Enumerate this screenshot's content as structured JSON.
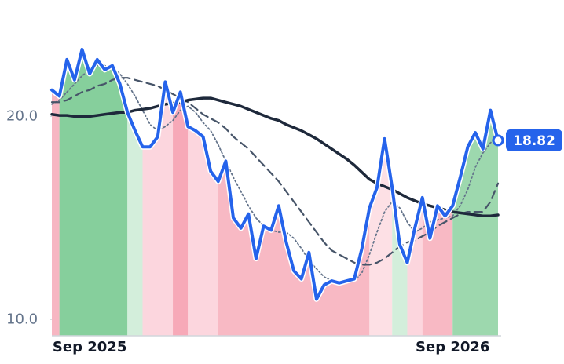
{
  "chart_data": {
    "type": "line",
    "categories": [
      null,
      null,
      null,
      null,
      null,
      "Sep 2025",
      null,
      null,
      null,
      null,
      null,
      null,
      null,
      null,
      null,
      null,
      null,
      null,
      null,
      null,
      null,
      null,
      null,
      null,
      null,
      null,
      null,
      null,
      null,
      null,
      null,
      null,
      null,
      null,
      null,
      null,
      null,
      null,
      null,
      null,
      null,
      null,
      null,
      null,
      null,
      null,
      null,
      null,
      null,
      null,
      null,
      null,
      null,
      "Sep 2026",
      null,
      null,
      null,
      null,
      null,
      null
    ],
    "series": [
      {
        "color": "#2563eb",
        "style": "solid",
        "width": 4,
        "last_label": true,
        "values": [
          21.3,
          21.0,
          22.8,
          21.8,
          23.3,
          22.1,
          22.8,
          22.3,
          22.5,
          21.6,
          20.2,
          19.3,
          18.5,
          18.5,
          19.0,
          21.7,
          20.2,
          21.2,
          19.5,
          19.3,
          19.0,
          17.3,
          16.8,
          17.8,
          15.0,
          14.5,
          15.2,
          13.0,
          14.6,
          14.4,
          15.6,
          13.8,
          12.4,
          12.0,
          13.3,
          11.0,
          11.7,
          11.9,
          11.8,
          11.9,
          12.0,
          13.5,
          15.5,
          16.5,
          18.9,
          16.5,
          13.7,
          12.8,
          14.5,
          16.0,
          14.0,
          15.6,
          15.1,
          15.6,
          17.0,
          18.5,
          19.2,
          18.4,
          20.3,
          18.82
        ]
      },
      {
        "color": "#1e293b",
        "style": "solid",
        "width": 3.5,
        "values": [
          20.1,
          20.05,
          20.05,
          20.0,
          20.0,
          20.0,
          20.05,
          20.1,
          20.15,
          20.2,
          20.2,
          20.3,
          20.35,
          20.4,
          20.5,
          20.6,
          20.65,
          20.7,
          20.8,
          20.85,
          20.9,
          20.9,
          20.8,
          20.7,
          20.6,
          20.5,
          20.35,
          20.2,
          20.05,
          19.9,
          19.8,
          19.6,
          19.45,
          19.3,
          19.1,
          18.9,
          18.65,
          18.4,
          18.15,
          17.9,
          17.6,
          17.25,
          16.9,
          16.7,
          16.55,
          16.4,
          16.2,
          16.0,
          15.85,
          15.7,
          15.6,
          15.5,
          15.4,
          15.3,
          15.25,
          15.2,
          15.15,
          15.1,
          15.1,
          15.15
        ]
      },
      {
        "color": "#475569",
        "style": "dashed",
        "width": 2.2,
        "values": [
          20.7,
          20.7,
          20.8,
          21.0,
          21.2,
          21.3,
          21.5,
          21.6,
          21.8,
          21.9,
          21.9,
          21.8,
          21.7,
          21.6,
          21.5,
          21.3,
          21.1,
          20.9,
          20.7,
          20.4,
          20.1,
          19.9,
          19.7,
          19.4,
          19.0,
          18.7,
          18.4,
          18.0,
          17.6,
          17.2,
          16.8,
          16.3,
          15.8,
          15.3,
          14.8,
          14.3,
          13.8,
          13.4,
          13.2,
          13.0,
          12.8,
          12.7,
          12.7,
          12.8,
          13.0,
          13.3,
          13.6,
          13.8,
          13.9,
          14.1,
          14.3,
          14.6,
          14.8,
          15.0,
          15.2,
          15.3,
          15.3,
          15.3,
          15.8,
          16.7
        ]
      },
      {
        "color": "#64748b",
        "style": "dotted",
        "width": 1.8,
        "values": [
          20.6,
          20.8,
          21.2,
          21.6,
          22.0,
          22.3,
          22.5,
          22.5,
          22.4,
          22.1,
          21.6,
          21.0,
          20.3,
          19.6,
          19.3,
          19.5,
          19.8,
          20.3,
          20.5,
          20.2,
          19.7,
          19.3,
          18.6,
          17.8,
          17.0,
          16.3,
          15.6,
          15.0,
          14.6,
          14.4,
          14.3,
          14.3,
          14.0,
          13.5,
          12.9,
          12.5,
          12.1,
          11.9,
          11.8,
          11.8,
          11.9,
          12.3,
          13.2,
          14.3,
          15.3,
          15.8,
          15.5,
          14.8,
          14.3,
          14.5,
          14.8,
          14.9,
          15.0,
          15.1,
          15.6,
          16.4,
          17.5,
          18.2,
          18.7,
          19.0
        ]
      }
    ],
    "bands": [
      {
        "from": 0,
        "to": 1,
        "color": "#f7b6c2"
      },
      {
        "from": 1,
        "to": 10,
        "color": "#86cf9c"
      },
      {
        "from": 10,
        "to": 12,
        "color": "#d3eedb"
      },
      {
        "from": 12,
        "to": 16,
        "color": "#fcd6de"
      },
      {
        "from": 16,
        "to": 18,
        "color": "#f7a9b8"
      },
      {
        "from": 18,
        "to": 22,
        "color": "#fcd6de"
      },
      {
        "from": 22,
        "to": 42,
        "color": "#f8b9c4"
      },
      {
        "from": 42,
        "to": 45,
        "color": "#fde0e5"
      },
      {
        "from": 45,
        "to": 47,
        "color": "#d3eedb"
      },
      {
        "from": 47,
        "to": 49,
        "color": "#fcd6de"
      },
      {
        "from": 49,
        "to": 53,
        "color": "#f8b9c4"
      },
      {
        "from": 53,
        "to": 59,
        "color": "#9dd8ae"
      }
    ],
    "ylim": [
      9.2,
      23.8
    ],
    "yticks": [
      {
        "value": 10,
        "label": "10.0"
      },
      {
        "value": 20,
        "label": "20.0"
      }
    ],
    "grid": false
  }
}
